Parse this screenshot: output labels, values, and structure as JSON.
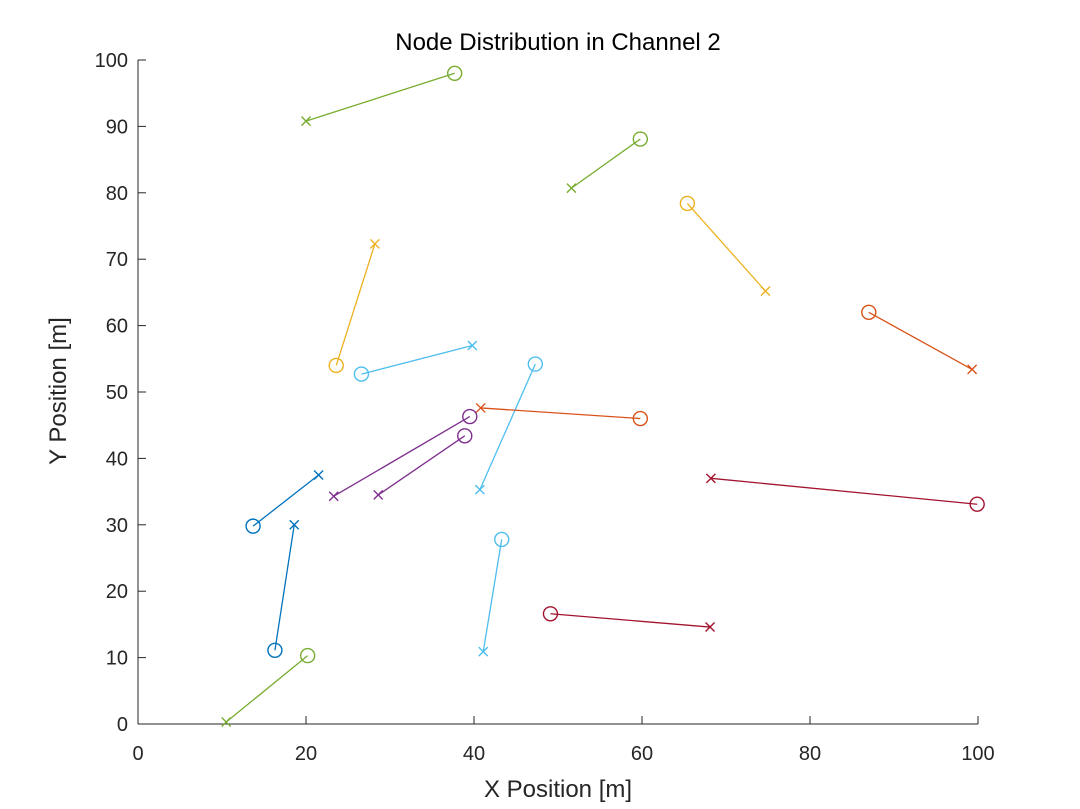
{
  "chart_data": {
    "type": "scatter",
    "title": "Node Distribution in Channel 2",
    "xlabel": "X Position [m]",
    "ylabel": "Y Position [m]",
    "xlim": [
      0,
      100
    ],
    "ylim": [
      0,
      100
    ],
    "xticks": [
      "0",
      "20",
      "40",
      "60",
      "80",
      "100"
    ],
    "yticks": [
      "0",
      "10",
      "20",
      "30",
      "40",
      "50",
      "60",
      "70",
      "80",
      "90",
      "100"
    ],
    "grid": false,
    "markers": {
      "receiver": "circle",
      "transmitter": "x"
    },
    "pairs": [
      {
        "color": "#77ac30",
        "receiver": [
          37.7,
          98.0
        ],
        "transmitter": [
          20.0,
          90.8
        ]
      },
      {
        "color": "#77ac30",
        "receiver": [
          59.8,
          88.1
        ],
        "transmitter": [
          51.6,
          80.7
        ]
      },
      {
        "color": "#edb120",
        "receiver": [
          65.4,
          78.4
        ],
        "transmitter": [
          74.7,
          65.2
        ]
      },
      {
        "color": "#d95319",
        "receiver": [
          87.0,
          62.0
        ],
        "transmitter": [
          99.3,
          53.4
        ]
      },
      {
        "color": "#edb120",
        "receiver": [
          23.6,
          54.0
        ],
        "transmitter": [
          28.2,
          72.3
        ]
      },
      {
        "color": "#4dbeee",
        "receiver": [
          26.6,
          52.7
        ],
        "transmitter": [
          39.8,
          57.0
        ]
      },
      {
        "color": "#4dbeee",
        "receiver": [
          47.3,
          54.2
        ],
        "transmitter": [
          40.7,
          35.3
        ]
      },
      {
        "color": "#d95319",
        "receiver": [
          59.8,
          46.0
        ],
        "transmitter": [
          40.8,
          47.6
        ]
      },
      {
        "color": "#7e2f8e",
        "receiver": [
          39.5,
          46.3
        ],
        "transmitter": [
          23.3,
          34.3
        ]
      },
      {
        "color": "#7e2f8e",
        "receiver": [
          38.9,
          43.4
        ],
        "transmitter": [
          28.6,
          34.5
        ]
      },
      {
        "color": "#a2142f",
        "receiver": [
          99.9,
          33.1
        ],
        "transmitter": [
          68.2,
          37.0
        ]
      },
      {
        "color": "#0072bd",
        "receiver": [
          13.7,
          29.8
        ],
        "transmitter": [
          21.5,
          37.5
        ]
      },
      {
        "color": "#0072bd",
        "receiver": [
          16.3,
          11.1
        ],
        "transmitter": [
          18.6,
          30.0
        ]
      },
      {
        "color": "#4dbeee",
        "receiver": [
          43.3,
          27.8
        ],
        "transmitter": [
          41.1,
          10.9
        ]
      },
      {
        "color": "#a2142f",
        "receiver": [
          49.1,
          16.6
        ],
        "transmitter": [
          68.1,
          14.6
        ]
      },
      {
        "color": "#77ac30",
        "receiver": [
          20.2,
          10.3
        ],
        "transmitter": [
          10.5,
          0.3
        ]
      }
    ]
  }
}
